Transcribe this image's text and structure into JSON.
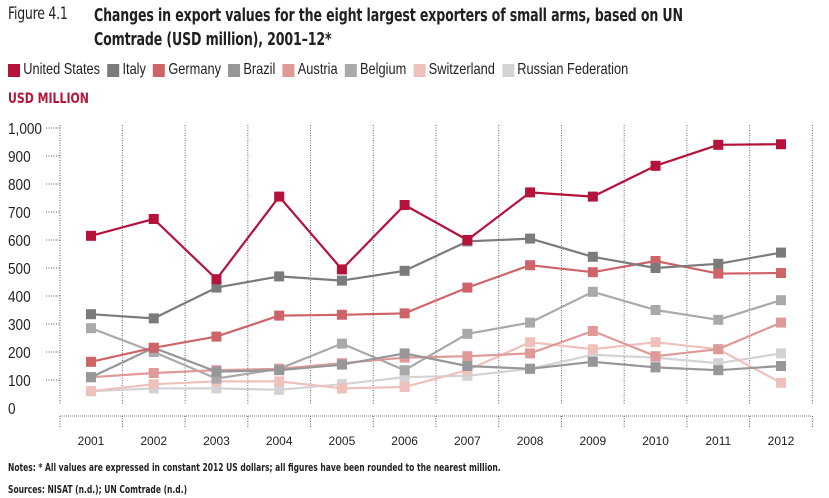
{
  "figure": {
    "label": "Figure 4.1",
    "title": "Changes in export values for the eight largest exporters of small arms, based on UN Comtrade (USD million), 2001–12*",
    "unit_label": "USD MILLION",
    "notes": "Notes: * All values are expressed in constant 2012 US dollars; all figures have been rounded to the nearest million.",
    "sources": "Sources: NISAT (n.d.); UN Comtrade (n.d.)"
  },
  "chart_data": {
    "type": "line",
    "title": "Changes in export values for the eight largest exporters of small arms, based on UN Comtrade (USD million), 2001–12*",
    "xlabel": "",
    "ylabel": "USD MILLION",
    "x": [
      "2001",
      "2002",
      "2003",
      "2004",
      "2005",
      "2006",
      "2007",
      "2008",
      "2009",
      "2010",
      "2011",
      "2012"
    ],
    "ylim": [
      0,
      1000
    ],
    "yticks": [
      0,
      100,
      200,
      300,
      400,
      500,
      600,
      700,
      800,
      900,
      1000
    ],
    "ytick_labels": [
      "0",
      "100",
      "200",
      "300",
      "400",
      "500",
      "600",
      "700",
      "800",
      "900",
      "1,000"
    ],
    "grid": "vertical dotted",
    "legend": "top",
    "series": [
      {
        "name": "United States",
        "color": "#b5123c",
        "values": [
          615,
          675,
          460,
          755,
          495,
          725,
          600,
          770,
          755,
          865,
          940,
          942
        ]
      },
      {
        "name": "Italy",
        "color": "#7b7b7e",
        "values": [
          335,
          320,
          430,
          470,
          455,
          490,
          595,
          605,
          540,
          500,
          515,
          555
        ]
      },
      {
        "name": "Germany",
        "color": "#cf6468",
        "values": [
          165,
          215,
          255,
          330,
          333,
          338,
          430,
          510,
          485,
          525,
          480,
          482
        ]
      },
      {
        "name": "Brazil",
        "color": "#97979a",
        "values": [
          110,
          215,
          130,
          135,
          155,
          195,
          150,
          140,
          165,
          145,
          135,
          150
        ]
      },
      {
        "name": "Austria",
        "color": "#df9a98",
        "values": [
          110,
          125,
          135,
          140,
          160,
          180,
          185,
          195,
          275,
          185,
          210,
          305
        ]
      },
      {
        "name": "Belgium",
        "color": "#a9a9ac",
        "values": [
          285,
          200,
          105,
          140,
          230,
          135,
          265,
          305,
          415,
          350,
          315,
          385
        ]
      },
      {
        "name": "Switzerland",
        "color": "#efc1bb",
        "values": [
          60,
          85,
          95,
          95,
          70,
          75,
          135,
          235,
          210,
          235,
          210,
          90
        ]
      },
      {
        "name": "Russian Federation",
        "color": "#d3d3d5",
        "values": [
          60,
          70,
          70,
          65,
          85,
          110,
          115,
          140,
          190,
          180,
          160,
          195
        ]
      }
    ]
  }
}
